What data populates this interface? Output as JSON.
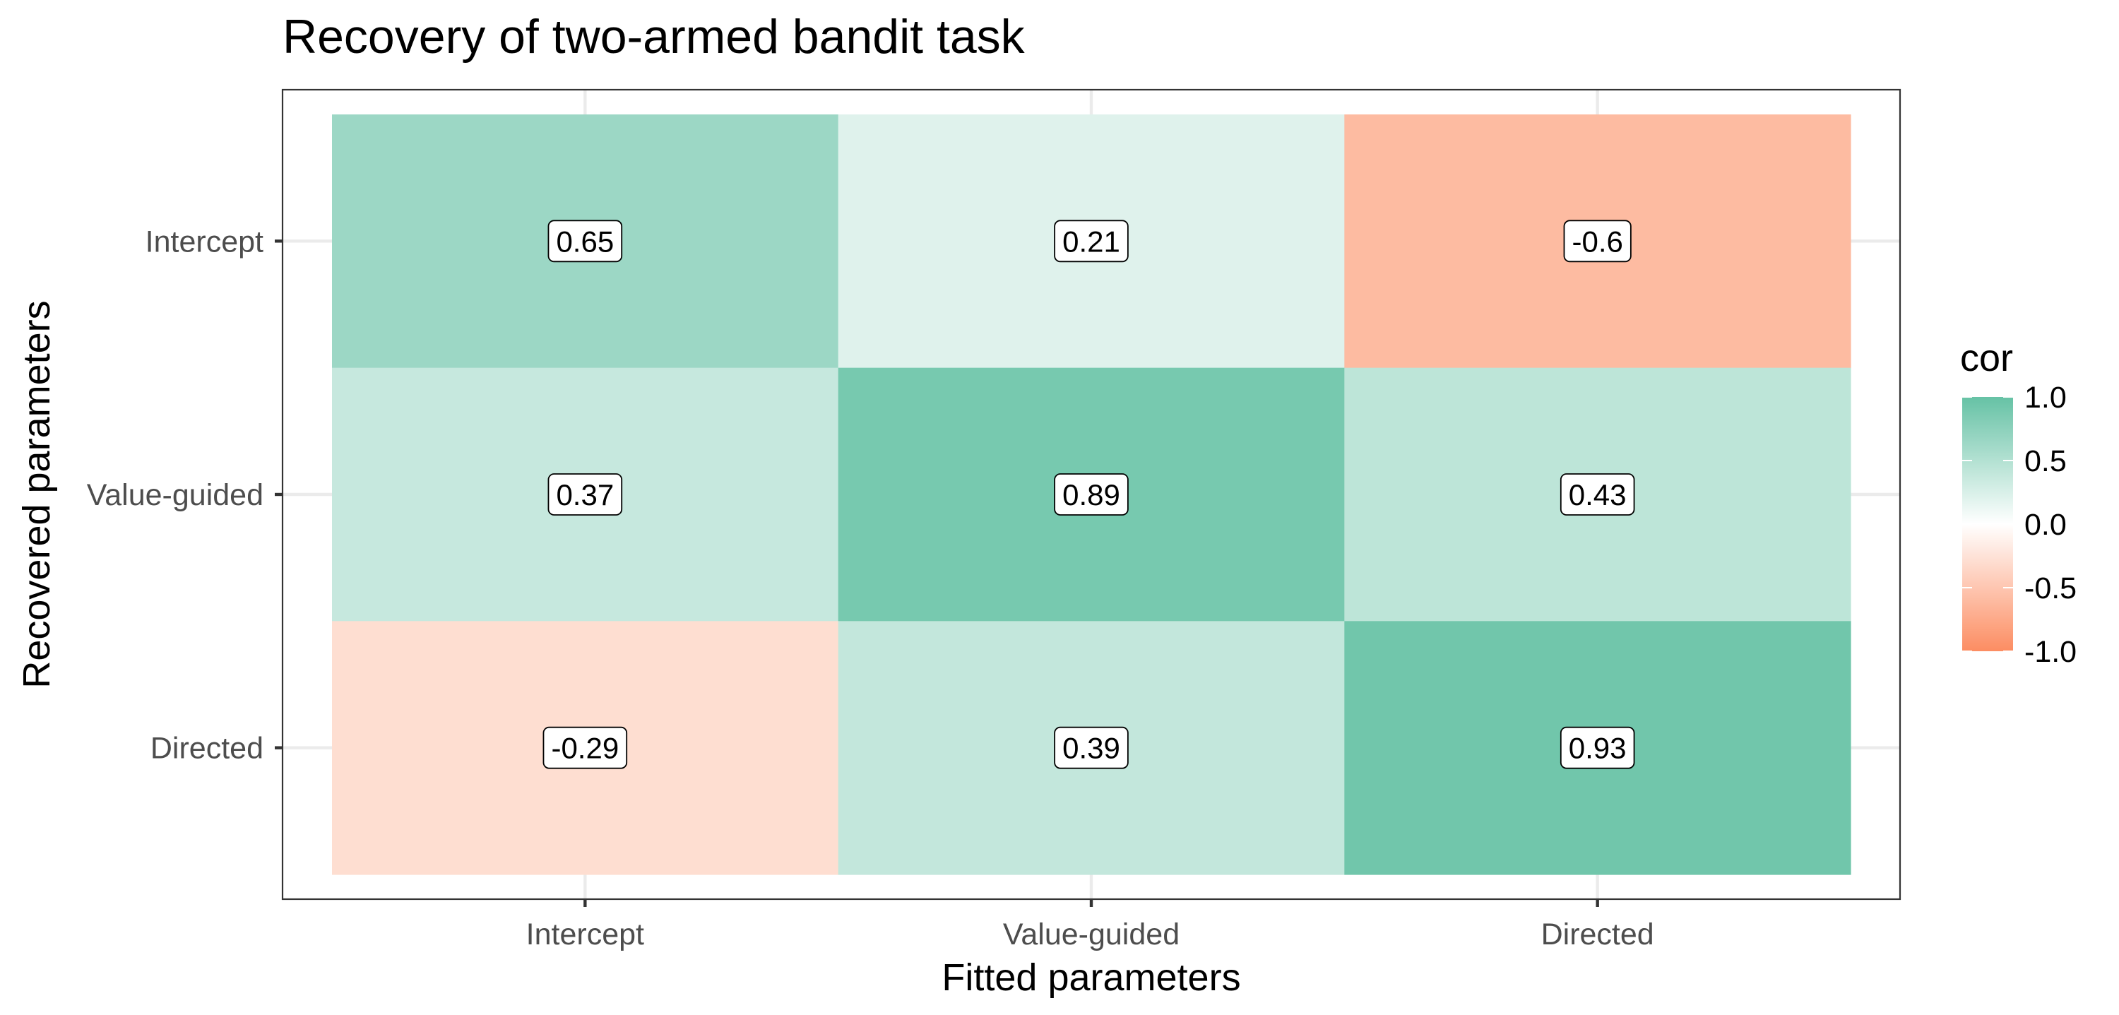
{
  "chart_data": {
    "type": "heatmap",
    "title": "Recovery of two-armed bandit task",
    "xlabel": "Fitted parameters",
    "ylabel": "Recovered parameters",
    "x_categories": [
      "Intercept",
      "Value-guided",
      "Directed"
    ],
    "y_categories": [
      "Intercept",
      "Value-guided",
      "Directed"
    ],
    "values": [
      [
        0.65,
        0.21,
        -0.6
      ],
      [
        0.37,
        0.89,
        0.43
      ],
      [
        -0.29,
        0.39,
        0.93
      ]
    ],
    "value_labels": [
      [
        "0.65",
        "0.21",
        "-0.6"
      ],
      [
        "0.37",
        "0.89",
        "0.43"
      ],
      [
        "-0.29",
        "0.39",
        "0.93"
      ]
    ],
    "legend": {
      "title": "cor",
      "ticks": [
        1.0,
        0.5,
        0.0,
        -0.5,
        -1.0
      ],
      "tick_labels": [
        "1.0",
        "0.5",
        "0.0",
        "-0.5",
        "-1.0"
      ],
      "position": "right"
    },
    "colors": {
      "high": "#66c2a5",
      "mid": "#ffffff",
      "low": "#fc8d62"
    },
    "limits": [
      -1,
      1
    ],
    "grid": true
  }
}
